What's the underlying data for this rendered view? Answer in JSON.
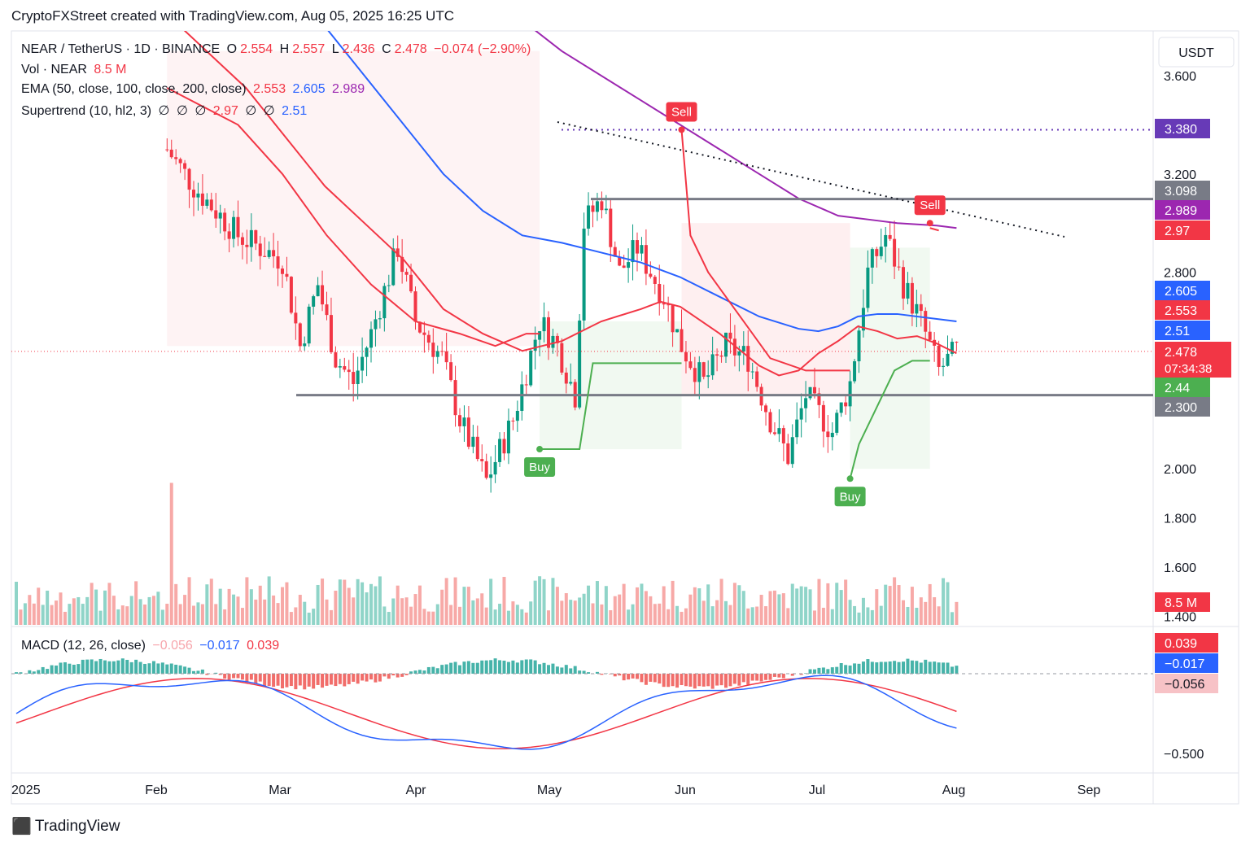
{
  "attribution": "CryptoFXStreet created with TradingView.com, Aug 05, 2025 16:25 UTC",
  "brand": "TradingView",
  "legend": {
    "symbol": "NEAR / TetherUS · 1D · BINANCE",
    "o_label": "O",
    "o": "2.554",
    "h_label": "H",
    "h": "2.557",
    "l_label": "L",
    "l": "2.436",
    "c_label": "C",
    "c": "2.478",
    "change": "−0.074 (−2.90%)",
    "vol_label": "Vol · NEAR",
    "vol": "8.5 M",
    "ema_label": "EMA (50, close, 100, close, 200, close)",
    "ema50": "2.553",
    "ema100": "2.605",
    "ema200": "2.989",
    "st_label": "Supertrend (10, hl2, 3)",
    "st_a": "∅",
    "st_b": "∅",
    "st_c": "∅",
    "st_up": "2.97",
    "st_d": "∅",
    "st_e": "∅",
    "st_dn": "2.51",
    "macd_label": "MACD (12, 26, close)",
    "macd_hist": "−0.056",
    "macd_line": "−0.017",
    "macd_signal": "0.039"
  },
  "axis_currency": "USDT",
  "chart_data": {
    "type": "candlestick",
    "title": "NEAR / TetherUS · 1D · BINANCE",
    "x_ticks": [
      "2025",
      "Feb",
      "Mar",
      "Apr",
      "May",
      "Jun",
      "Jul",
      "Aug",
      "Sep"
    ],
    "y_ticks": [
      "3.600",
      "3.200",
      "2.800",
      "2.000",
      "1.800",
      "1.600",
      "1.400"
    ],
    "y_range": [
      1.35,
      3.75
    ],
    "macd_ticks": [
      "−0.500"
    ],
    "price_labels": [
      {
        "value": "3.380",
        "color": "#673ab7"
      },
      {
        "value": "3.098",
        "color": "#787b86"
      },
      {
        "value": "2.989",
        "color": "#9c27b0"
      },
      {
        "value": "2.97",
        "color": "#f23645"
      },
      {
        "value": "2.605",
        "color": "#2962ff"
      },
      {
        "value": "2.553",
        "color": "#f23645"
      },
      {
        "value": "2.51",
        "color": "#2962ff"
      },
      {
        "value": "2.478",
        "sub": "07:34:38",
        "color": "#f23645"
      },
      {
        "value": "2.44",
        "color": "#4caf50"
      },
      {
        "value": "2.300",
        "color": "#787b86"
      },
      {
        "value": "8.5 M",
        "color": "#f23645"
      }
    ],
    "macd_labels": [
      {
        "value": "0.039",
        "color": "#f23645"
      },
      {
        "value": "−0.017",
        "color": "#2962ff"
      },
      {
        "value": "−0.056",
        "color": "#f7c2c6"
      }
    ],
    "signals": [
      {
        "label": "Buy",
        "type": "buy",
        "date": "Apr 25"
      },
      {
        "label": "Sell",
        "type": "sell",
        "date": "May 30"
      },
      {
        "label": "Buy",
        "type": "buy",
        "date": "Jul 12"
      },
      {
        "label": "Sell",
        "type": "sell",
        "date": "Aug 01"
      }
    ],
    "horizontal_levels": [
      3.38,
      3.098,
      2.3
    ],
    "series": {
      "ema50": [
        [
          0,
          3.85
        ],
        [
          20,
          3.55
        ],
        [
          30,
          3.35
        ],
        [
          40,
          3.15
        ],
        [
          50,
          3.0
        ],
        [
          60,
          2.85
        ],
        [
          70,
          2.65
        ],
        [
          80,
          2.55
        ],
        [
          90,
          2.48
        ],
        [
          100,
          2.52
        ],
        [
          110,
          2.6
        ],
        [
          120,
          2.65
        ],
        [
          125,
          2.68
        ],
        [
          130,
          2.66
        ],
        [
          140,
          2.55
        ],
        [
          150,
          2.42
        ],
        [
          155,
          2.38
        ],
        [
          160,
          2.4
        ],
        [
          165,
          2.47
        ],
        [
          170,
          2.52
        ],
        [
          175,
          2.58
        ],
        [
          180,
          2.56
        ],
        [
          185,
          2.53
        ],
        [
          190,
          2.54
        ],
        [
          195,
          2.51
        ],
        [
          200,
          2.47
        ]
      ],
      "ema100": [
        [
          0,
          4.7
        ],
        [
          20,
          4.3
        ],
        [
          30,
          4.05
        ],
        [
          40,
          3.8
        ],
        [
          50,
          3.6
        ],
        [
          60,
          3.4
        ],
        [
          70,
          3.2
        ],
        [
          80,
          3.05
        ],
        [
          90,
          2.95
        ],
        [
          100,
          2.92
        ],
        [
          110,
          2.88
        ],
        [
          120,
          2.84
        ],
        [
          130,
          2.78
        ],
        [
          140,
          2.7
        ],
        [
          150,
          2.62
        ],
        [
          160,
          2.57
        ],
        [
          165,
          2.56
        ],
        [
          170,
          2.58
        ],
        [
          175,
          2.62
        ],
        [
          180,
          2.63
        ],
        [
          185,
          2.63
        ],
        [
          190,
          2.62
        ],
        [
          195,
          2.61
        ],
        [
          200,
          2.6
        ]
      ],
      "ema200": [
        [
          40,
          4.7
        ],
        [
          60,
          4.3
        ],
        [
          80,
          3.95
        ],
        [
          100,
          3.7
        ],
        [
          120,
          3.5
        ],
        [
          140,
          3.3
        ],
        [
          150,
          3.2
        ],
        [
          160,
          3.1
        ],
        [
          170,
          3.03
        ],
        [
          180,
          3.01
        ],
        [
          185,
          3.0
        ],
        [
          190,
          2.995
        ],
        [
          195,
          2.99
        ],
        [
          200,
          2.98
        ]
      ]
    }
  }
}
